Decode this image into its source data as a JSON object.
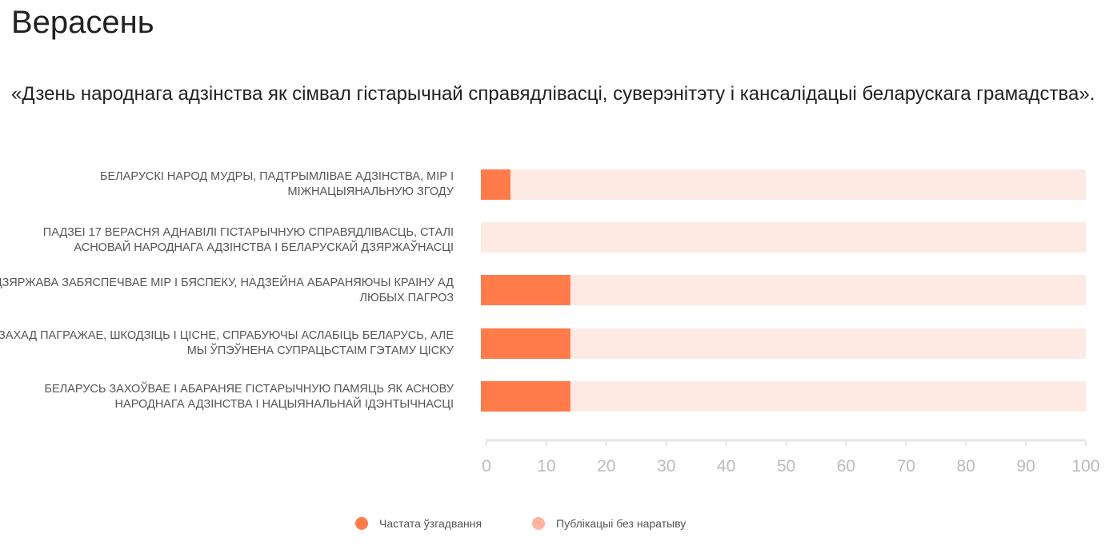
{
  "title": "Верасень",
  "subtitle": "«Дзень народнага адзінства як сімвал гістарычнай справядлівасці, суверэнітэту і кансалідацыі беларускага грамадства».",
  "colors": {
    "primary": "#ff7b4a",
    "background_bar": "#fdeae3",
    "legend_secondary": "#ffb3a0",
    "axis": "#e6e6e6",
    "tick_label": "#bbbbbb"
  },
  "chart_data": {
    "type": "bar",
    "orientation": "horizontal",
    "categories": [
      "Беларускі народ мудры, падтрымлівае адзінства, мір і міжнацыянальную згоду",
      "Падзеі 17 верасня аднавілі гістарычную справядлівасць, сталі асновай народнага адзінства і беларускай дзяржаўнасці",
      "Дзяржава забяспечвае мір і бяспеку, надзейна абараняючы краіну ад любых пагроз",
      "Захад пагражае, шкодзіць і ціснe, спрабуючы аслабіць Беларусь, але мы ўпэўнена супрацьстаім гэтаму ціску",
      "Беларусь захоўвае і абараняе гістарычную памяць як аснову народнага адзінства і нацыянальнай ідэнтычнасці"
    ],
    "series": [
      {
        "name": "Частата ўзгадвання",
        "values": [
          4,
          0,
          14,
          14,
          14
        ]
      },
      {
        "name": "Публікацыі без наратыву",
        "values": [
          100,
          100,
          100,
          100,
          100
        ]
      }
    ],
    "xlim": [
      0,
      100
    ],
    "xticks": [
      "0",
      "10",
      "20",
      "30",
      "40",
      "50",
      "60",
      "70",
      "80",
      "90",
      "100"
    ],
    "grid": false,
    "legend": "bottom-center"
  }
}
